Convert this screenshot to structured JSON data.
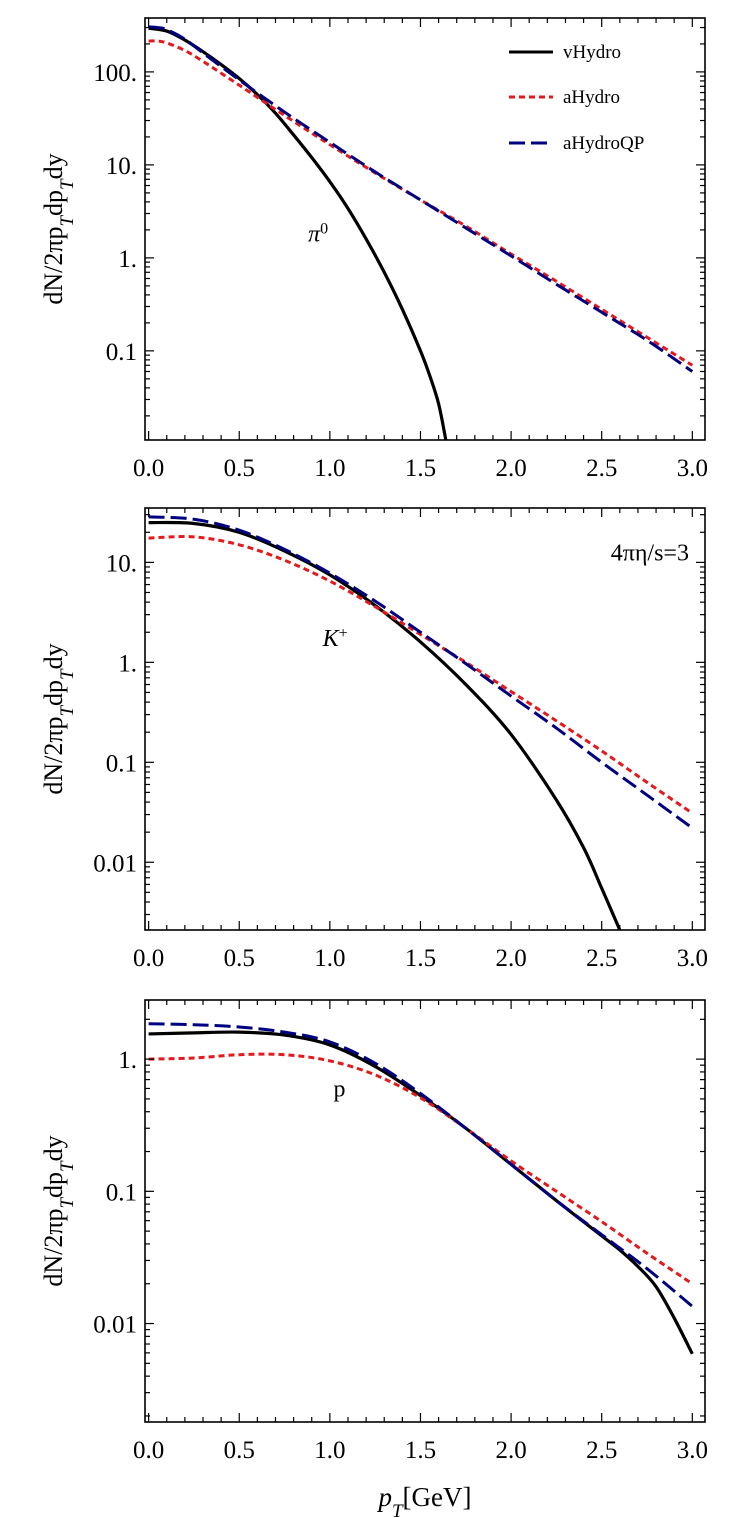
{
  "chart_data": [
    {
      "type": "line",
      "title": "",
      "xlabel": "",
      "ylabel": "dN/2πp_Tdp_Tdy",
      "yscale": "log",
      "xlim": [
        -0.02,
        3.07
      ],
      "ylim": [
        0.011,
        380
      ],
      "xticks": [
        0.0,
        0.5,
        1.0,
        1.5,
        2.0,
        2.5,
        3.0
      ],
      "xtick_labels": [
        "0.0",
        "0.5",
        "1.0",
        "1.5",
        "2.0",
        "2.5",
        "3.0"
      ],
      "yticks": [
        100,
        10,
        1,
        0.1
      ],
      "ytick_labels": [
        "100.",
        "10.",
        "1.",
        "0.1"
      ],
      "annotations": [
        {
          "text": "π",
          "sup": "0",
          "x": 0.88,
          "y": 1.5,
          "italic": true
        }
      ],
      "legend": {
        "position": "top-right",
        "entries": [
          "vHydro",
          "aHydro",
          "aHydroQP"
        ]
      },
      "series": [
        {
          "name": "vHydro",
          "color": "#000000",
          "style": "solid",
          "x": [
            0.0,
            0.1,
            0.2,
            0.3,
            0.4,
            0.5,
            0.6,
            0.7,
            0.8,
            0.9,
            1.0,
            1.1,
            1.2,
            1.3,
            1.4,
            1.5,
            1.55,
            1.6,
            1.64
          ],
          "y": [
            295,
            275,
            220,
            165,
            120,
            85,
            57,
            36,
            21,
            12,
            6.6,
            3.4,
            1.6,
            0.7,
            0.28,
            0.1,
            0.055,
            0.027,
            0.011
          ]
        },
        {
          "name": "aHydro",
          "color": "#e31a1c",
          "style": "dotted",
          "x": [
            0.0,
            0.05,
            0.1,
            0.2,
            0.3,
            0.5,
            0.75,
            1.0,
            1.25,
            1.5,
            1.75,
            2.0,
            2.25,
            2.5,
            2.75,
            3.0
          ],
          "y": [
            215,
            215,
            205,
            170,
            130,
            72,
            34,
            16.5,
            8.2,
            4.2,
            2.2,
            1.1,
            0.56,
            0.28,
            0.14,
            0.07
          ]
        },
        {
          "name": "aHydroQP",
          "color": "#000080",
          "style": "dashed",
          "x": [
            0.0,
            0.05,
            0.1,
            0.2,
            0.3,
            0.5,
            0.75,
            1.0,
            1.25,
            1.5,
            1.75,
            2.0,
            2.25,
            2.5,
            2.75,
            3.0
          ],
          "y": [
            305,
            300,
            285,
            225,
            160,
            82,
            37,
            17.5,
            8.4,
            4.2,
            2.1,
            1.05,
            0.52,
            0.26,
            0.13,
            0.06
          ]
        }
      ]
    },
    {
      "type": "line",
      "title": "",
      "xlabel": "",
      "ylabel": "dN/2πp_Tdp_Tdy",
      "yscale": "log",
      "xlim": [
        -0.02,
        3.07
      ],
      "ylim": [
        0.0021,
        35
      ],
      "xticks": [
        0.0,
        0.5,
        1.0,
        1.5,
        2.0,
        2.5,
        3.0
      ],
      "xtick_labels": [
        "0.0",
        "0.5",
        "1.0",
        "1.5",
        "2.0",
        "2.5",
        "3.0"
      ],
      "yticks": [
        10,
        1,
        0.1,
        0.01
      ],
      "ytick_labels": [
        "10.",
        "1.",
        "0.1",
        "0.01"
      ],
      "annotations": [
        {
          "text": "4πη/s=3",
          "x": 2.55,
          "y": 10.5,
          "italic": false
        },
        {
          "text": "K",
          "sup": "+",
          "x": 0.96,
          "y": 1.45,
          "italic": true
        }
      ],
      "series": [
        {
          "name": "vHydro",
          "color": "#000000",
          "style": "solid",
          "x": [
            0.0,
            0.25,
            0.5,
            0.75,
            1.0,
            1.25,
            1.5,
            1.75,
            2.0,
            2.25,
            2.4,
            2.5,
            2.6
          ],
          "y": [
            25,
            24.5,
            20,
            13,
            7.5,
            3.7,
            1.6,
            0.6,
            0.19,
            0.042,
            0.014,
            0.0055,
            0.0021
          ]
        },
        {
          "name": "aHydro",
          "color": "#e31a1c",
          "style": "dotted",
          "x": [
            0.0,
            0.25,
            0.5,
            0.75,
            1.0,
            1.25,
            1.5,
            1.75,
            2.0,
            2.25,
            2.5,
            2.75,
            3.0
          ],
          "y": [
            17.5,
            18,
            15,
            10.5,
            6.5,
            3.6,
            1.9,
            1.0,
            0.51,
            0.26,
            0.13,
            0.063,
            0.031
          ]
        },
        {
          "name": "aHydroQP",
          "color": "#000080",
          "style": "dashed",
          "x": [
            0.0,
            0.25,
            0.5,
            0.75,
            1.0,
            1.25,
            1.5,
            1.75,
            2.0,
            2.25,
            2.5,
            2.75,
            3.0
          ],
          "y": [
            28.5,
            27,
            21,
            13.5,
            7.8,
            4.1,
            2.0,
            0.97,
            0.46,
            0.22,
            0.1,
            0.047,
            0.022
          ]
        }
      ]
    },
    {
      "type": "line",
      "title": "",
      "xlabel": "p_T[GeV]",
      "ylabel": "dN/2πp_Tdp_Tdy",
      "yscale": "log",
      "xlim": [
        -0.02,
        3.07
      ],
      "ylim": [
        0.0018,
        2.8
      ],
      "xticks": [
        0.0,
        0.5,
        1.0,
        1.5,
        2.0,
        2.5,
        3.0
      ],
      "xtick_labels": [
        "0.0",
        "0.5",
        "1.0",
        "1.5",
        "2.0",
        "2.5",
        "3.0"
      ],
      "yticks": [
        1,
        0.1,
        0.01
      ],
      "ytick_labels": [
        "1.",
        "0.1",
        "0.01"
      ],
      "annotations": [
        {
          "text": "p",
          "x": 1.02,
          "y": 0.52,
          "italic": false
        }
      ],
      "series": [
        {
          "name": "vHydro",
          "color": "#000000",
          "style": "solid",
          "x": [
            0.0,
            0.25,
            0.5,
            0.75,
            1.0,
            1.25,
            1.5,
            1.75,
            2.0,
            2.25,
            2.5,
            2.6,
            2.7,
            2.8,
            2.9,
            3.0
          ],
          "y": [
            1.55,
            1.58,
            1.6,
            1.52,
            1.28,
            0.88,
            0.53,
            0.3,
            0.16,
            0.085,
            0.046,
            0.036,
            0.027,
            0.019,
            0.011,
            0.0059
          ]
        },
        {
          "name": "aHydro",
          "color": "#e31a1c",
          "style": "dotted",
          "x": [
            0.0,
            0.25,
            0.5,
            0.75,
            1.0,
            1.25,
            1.5,
            1.75,
            2.0,
            2.25,
            2.5,
            2.75,
            3.0
          ],
          "y": [
            1.0,
            1.02,
            1.08,
            1.08,
            0.97,
            0.76,
            0.51,
            0.3,
            0.17,
            0.1,
            0.059,
            0.034,
            0.02
          ]
        },
        {
          "name": "aHydroQP",
          "color": "#000080",
          "style": "dashed",
          "x": [
            0.0,
            0.25,
            0.5,
            0.75,
            1.0,
            1.25,
            1.5,
            1.75,
            2.0,
            2.25,
            2.5,
            2.75,
            3.0
          ],
          "y": [
            1.85,
            1.82,
            1.75,
            1.6,
            1.35,
            0.93,
            0.55,
            0.3,
            0.16,
            0.085,
            0.047,
            0.026,
            0.0135
          ]
        }
      ]
    }
  ]
}
